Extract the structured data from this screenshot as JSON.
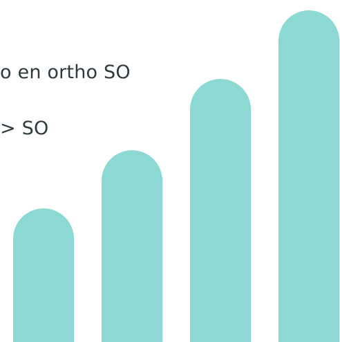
{
  "lines": [
    "o en ortho SO",
    "> SO"
  ],
  "bar_color": "#8cd8d3",
  "text_color": "#2f3a3a",
  "bars": [
    {
      "level": 0.39
    },
    {
      "level": 0.56
    },
    {
      "level": 0.77
    },
    {
      "level": 0.97
    }
  ]
}
